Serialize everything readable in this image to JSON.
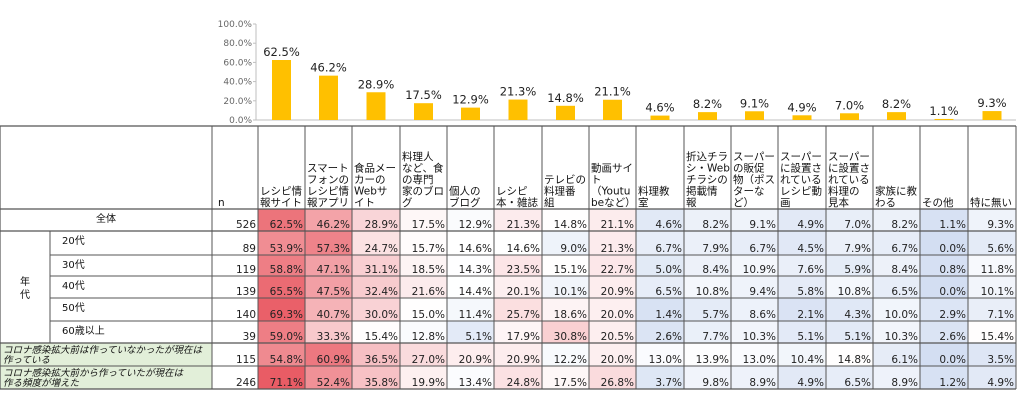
{
  "chart_data": {
    "type": "bar",
    "ylim": [
      0,
      100
    ],
    "y_ticks": [
      "0.0%",
      "20.0%",
      "40.0%",
      "60.0%",
      "80.0%",
      "100.0%"
    ],
    "bar_color": "#ffc000",
    "categories": [
      "レシピ情報サイト",
      "スマートフォンのレシピ情報アプリ",
      "食品メーカーのWebサイト",
      "料理人など、食の専門家のブログ",
      "個人のブログ",
      "レシピ本・雑誌",
      "テレビの料理番組",
      "動画サイト（Youtubeなど）",
      "料理教室",
      "折込チラシ・Webチラシの掲載情報",
      "スーパーの販促物（ポスターなど）",
      "スーパーに設置されているレシピ動画",
      "スーパーに設置されている料理の見本",
      "家族に教わる",
      "その他",
      "特に無い"
    ],
    "values": [
      62.5,
      46.2,
      28.9,
      17.5,
      12.9,
      21.3,
      14.8,
      21.1,
      4.6,
      8.2,
      9.1,
      4.9,
      7.0,
      8.2,
      1.1,
      9.3
    ],
    "value_labels": [
      "62.5%",
      "46.2%",
      "28.9%",
      "17.5%",
      "12.9%",
      "21.3%",
      "14.8%",
      "21.1%",
      "4.6%",
      "8.2%",
      "9.1%",
      "4.9%",
      "7.0%",
      "8.2%",
      "1.1%",
      "9.3%"
    ]
  },
  "table": {
    "n_header": "n",
    "col_headers": [
      [
        "レシピ情",
        "報サイト"
      ],
      [
        "スマート",
        "フォンの",
        "レシピ情",
        "報アプリ"
      ],
      [
        "食品メー",
        "カーの",
        "Webサ",
        "イト"
      ],
      [
        "料理人",
        "など、食",
        "の専門",
        "家のブロ",
        "グ"
      ],
      [
        "個人の",
        "ブログ"
      ],
      [
        "レシピ",
        "本・雑誌"
      ],
      [
        "テレビの",
        "料理番",
        "組"
      ],
      [
        "動画サイ",
        "ト",
        "（Youtu",
        "beなど）"
      ],
      [
        "料理教",
        "室"
      ],
      [
        "折込チラ",
        "シ・Web",
        "チラシの",
        "掲載情",
        "報"
      ],
      [
        "スーパー",
        "の販促",
        "物（ポス",
        "ターな",
        "ど）"
      ],
      [
        "スーパー",
        "に設置さ",
        "れている",
        "レシピ動",
        "画"
      ],
      [
        "スーパー",
        "に設置さ",
        "れている",
        "料理の",
        "見本"
      ],
      [
        "家族に教",
        "わる"
      ],
      [
        "その他"
      ],
      [
        "特に無い"
      ]
    ],
    "group_label": [
      "年",
      "代"
    ],
    "rows": [
      {
        "label": "全体",
        "n": "526",
        "values": [
          "62.5%",
          "46.2%",
          "28.9%",
          "17.5%",
          "12.9%",
          "21.3%",
          "14.8%",
          "21.1%",
          "4.6%",
          "8.2%",
          "9.1%",
          "4.9%",
          "7.0%",
          "8.2%",
          "1.1%",
          "9.3%"
        ]
      },
      {
        "label": "20代",
        "n": "89",
        "values": [
          "53.9%",
          "57.3%",
          "24.7%",
          "15.7%",
          "14.6%",
          "14.6%",
          "9.0%",
          "21.3%",
          "6.7%",
          "7.9%",
          "6.7%",
          "4.5%",
          "7.9%",
          "6.7%",
          "0.0%",
          "5.6%"
        ]
      },
      {
        "label": "30代",
        "n": "119",
        "values": [
          "58.8%",
          "47.1%",
          "31.1%",
          "18.5%",
          "14.3%",
          "23.5%",
          "15.1%",
          "22.7%",
          "5.0%",
          "8.4%",
          "10.9%",
          "7.6%",
          "5.9%",
          "8.4%",
          "0.8%",
          "11.8%"
        ]
      },
      {
        "label": "40代",
        "n": "139",
        "values": [
          "65.5%",
          "47.5%",
          "32.4%",
          "21.6%",
          "14.4%",
          "20.1%",
          "10.1%",
          "20.9%",
          "6.5%",
          "10.8%",
          "9.4%",
          "5.8%",
          "10.8%",
          "6.5%",
          "0.0%",
          "10.1%"
        ]
      },
      {
        "label": "50代",
        "n": "140",
        "values": [
          "69.3%",
          "40.7%",
          "30.0%",
          "15.0%",
          "11.4%",
          "25.7%",
          "18.6%",
          "20.0%",
          "1.4%",
          "5.7%",
          "8.6%",
          "2.1%",
          "4.3%",
          "10.0%",
          "2.9%",
          "7.1%"
        ]
      },
      {
        "label": "60歳以上",
        "n": "39",
        "values": [
          "59.0%",
          "33.3%",
          "15.4%",
          "12.8%",
          "5.1%",
          "17.9%",
          "30.8%",
          "20.5%",
          "2.6%",
          "7.7%",
          "10.3%",
          "5.1%",
          "5.1%",
          "10.3%",
          "2.6%",
          "15.4%"
        ]
      },
      {
        "label": "コロナ感染拡大前は作っていなかったが現在は作っている",
        "n": "115",
        "values": [
          "54.8%",
          "60.9%",
          "36.5%",
          "27.0%",
          "20.9%",
          "20.9%",
          "12.2%",
          "20.0%",
          "13.0%",
          "13.9%",
          "13.0%",
          "10.4%",
          "14.8%",
          "6.1%",
          "0.0%",
          "3.5%"
        ]
      },
      {
        "label": "コロナ感染拡大前から作っていたが現在は作る頻度が増えた",
        "n": "246",
        "values": [
          "71.1%",
          "52.4%",
          "35.8%",
          "19.9%",
          "13.4%",
          "24.8%",
          "17.5%",
          "26.8%",
          "3.7%",
          "9.8%",
          "8.9%",
          "4.9%",
          "6.5%",
          "8.9%",
          "1.2%",
          "4.9%"
        ]
      }
    ]
  }
}
